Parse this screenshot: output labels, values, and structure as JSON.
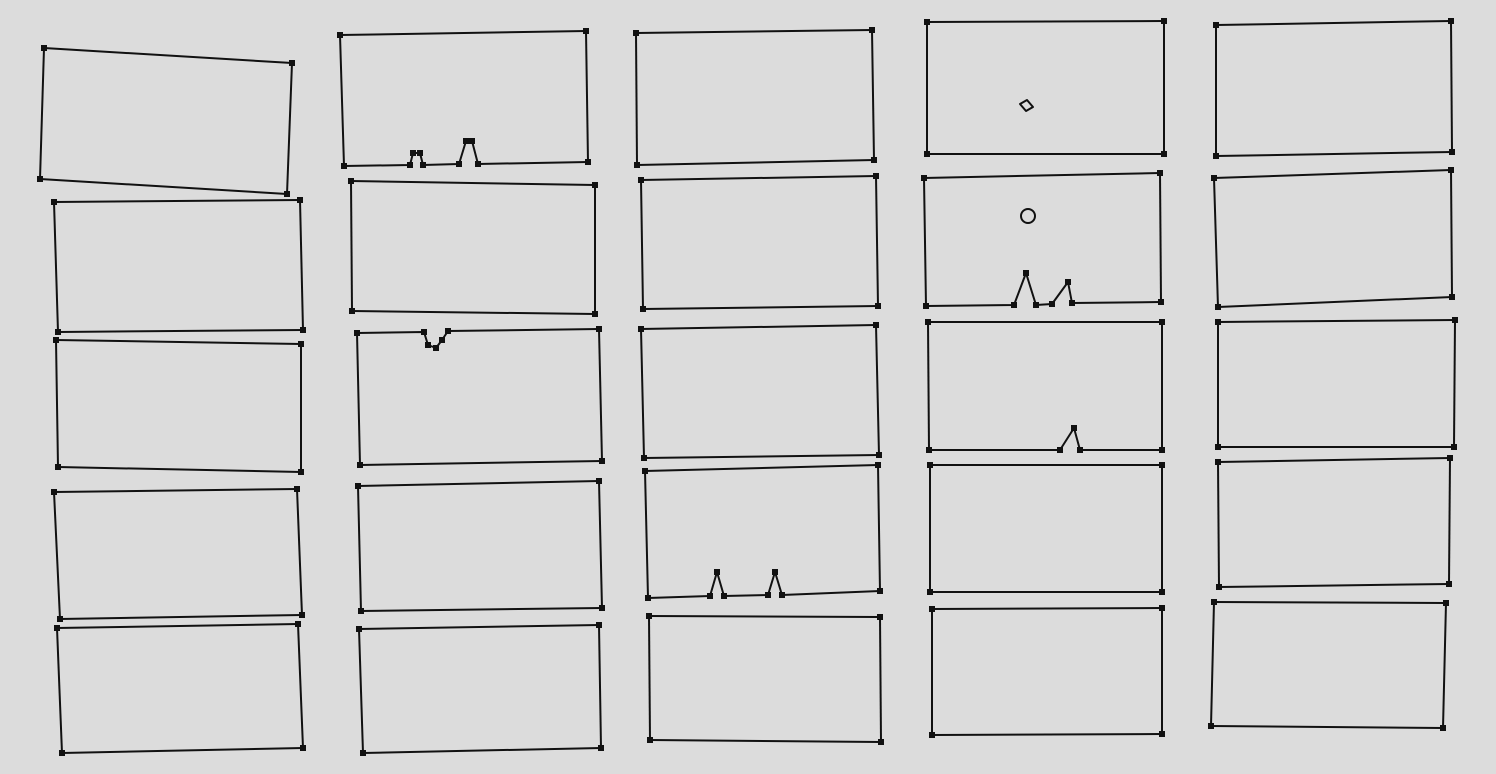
{
  "canvas": {
    "background": "#dcdcdc",
    "stroke": "#111111"
  },
  "sketches": [
    {
      "kind": "rectangle"
    },
    {
      "kind": "rectangle"
    },
    {
      "kind": "rectangle"
    },
    {
      "kind": "rectangle"
    },
    {
      "kind": "rectangle"
    },
    {
      "kind": "rectangle-with-two-bottom-peaks"
    },
    {
      "kind": "rectangle"
    },
    {
      "kind": "rectangle-with-top-dip"
    },
    {
      "kind": "rectangle"
    },
    {
      "kind": "rectangle"
    },
    {
      "kind": "rectangle"
    },
    {
      "kind": "rectangle"
    },
    {
      "kind": "rectangle"
    },
    {
      "kind": "rectangle-with-two-bottom-peaks"
    },
    {
      "kind": "rectangle"
    },
    {
      "kind": "rectangle-with-small-diamond"
    },
    {
      "kind": "rectangle-with-circle-and-two-bottom-peaks"
    },
    {
      "kind": "rectangle-with-bottom-peak"
    },
    {
      "kind": "rectangle"
    },
    {
      "kind": "rectangle"
    },
    {
      "kind": "rectangle"
    },
    {
      "kind": "rectangle"
    },
    {
      "kind": "rectangle"
    },
    {
      "kind": "rectangle"
    },
    {
      "kind": "rectangle"
    }
  ]
}
